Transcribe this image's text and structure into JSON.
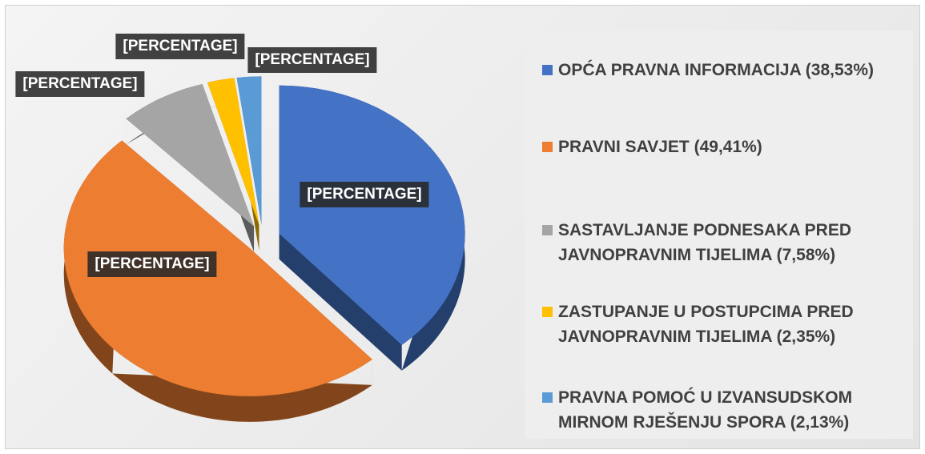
{
  "chart_data": {
    "type": "pie",
    "categories": [
      "OPĆA PRAVNA INFORMACIJA (38,53%)",
      "PRAVNI SAVJET (49,41%)",
      "SASTAVLJANJE PODNESAKA PRED JAVNOPRAVNIM TIJELIMA (7,58%)",
      "ZASTUPANJE U POSTUPCIMA PRED JAVNOPRAVNIM TIJELIMA (2,35%)",
      "PRAVNA POMOĆ U IZVANSUDSKOM MIRNOM RJEŠENJU SPORA (2,13%)"
    ],
    "values": [
      38.53,
      49.41,
      7.58,
      2.35,
      2.13
    ],
    "value_labels": [
      "[PERCENTAGE]",
      "[PERCENTAGE]",
      "[PERCENTAGE]",
      "[PERCENTAGE]",
      "[PERCENTAGE]"
    ],
    "colors": [
      "#4472c4",
      "#ed7d31",
      "#a5a5a5",
      "#ffc000",
      "#5b9bd5"
    ],
    "legend": "right"
  }
}
